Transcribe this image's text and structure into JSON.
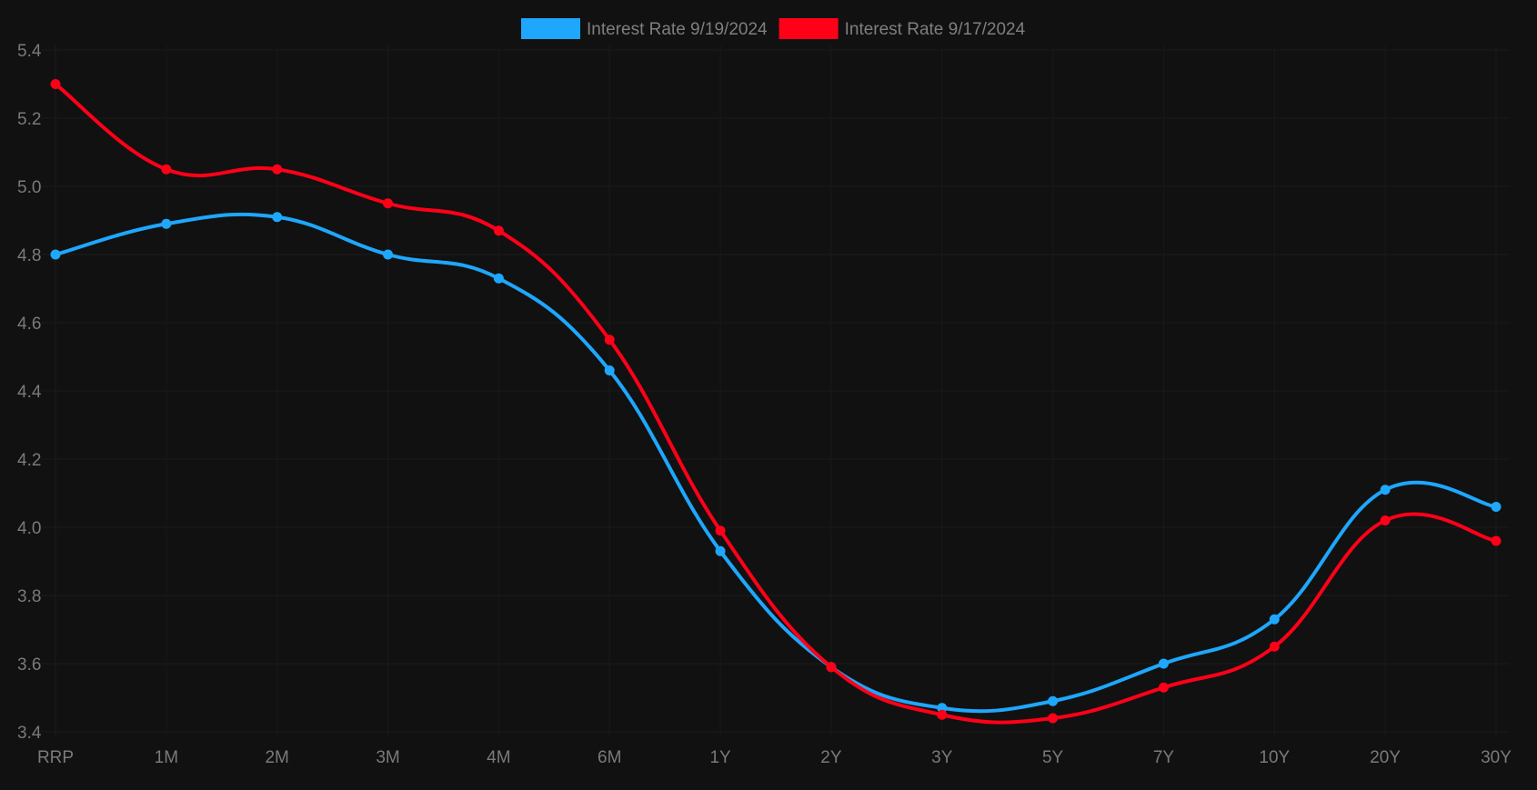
{
  "chart_data": {
    "type": "line",
    "categories": [
      "RRP",
      "1M",
      "2M",
      "3M",
      "4M",
      "6M",
      "1Y",
      "2Y",
      "3Y",
      "5Y",
      "7Y",
      "10Y",
      "20Y",
      "30Y"
    ],
    "series": [
      {
        "name": "Interest Rate 9/19/2024",
        "color": "#1ea7fd",
        "values": [
          4.8,
          4.89,
          4.91,
          4.8,
          4.73,
          4.46,
          3.93,
          3.59,
          3.47,
          3.49,
          3.6,
          3.73,
          4.11,
          4.06
        ]
      },
      {
        "name": "Interest Rate 9/17/2024",
        "color": "#ff0018",
        "values": [
          5.3,
          5.05,
          5.05,
          4.95,
          4.87,
          4.55,
          3.99,
          3.59,
          3.45,
          3.44,
          3.53,
          3.65,
          4.02,
          3.96
        ]
      }
    ],
    "yticks": [
      "5.4",
      "5.2",
      "5.0",
      "4.8",
      "4.6",
      "4.4",
      "4.2",
      "4.0",
      "3.8",
      "3.6",
      "3.4"
    ],
    "ylim": [
      3.4,
      5.4
    ],
    "legend_position": "top-center",
    "grid": true,
    "background_color": "#111111"
  }
}
